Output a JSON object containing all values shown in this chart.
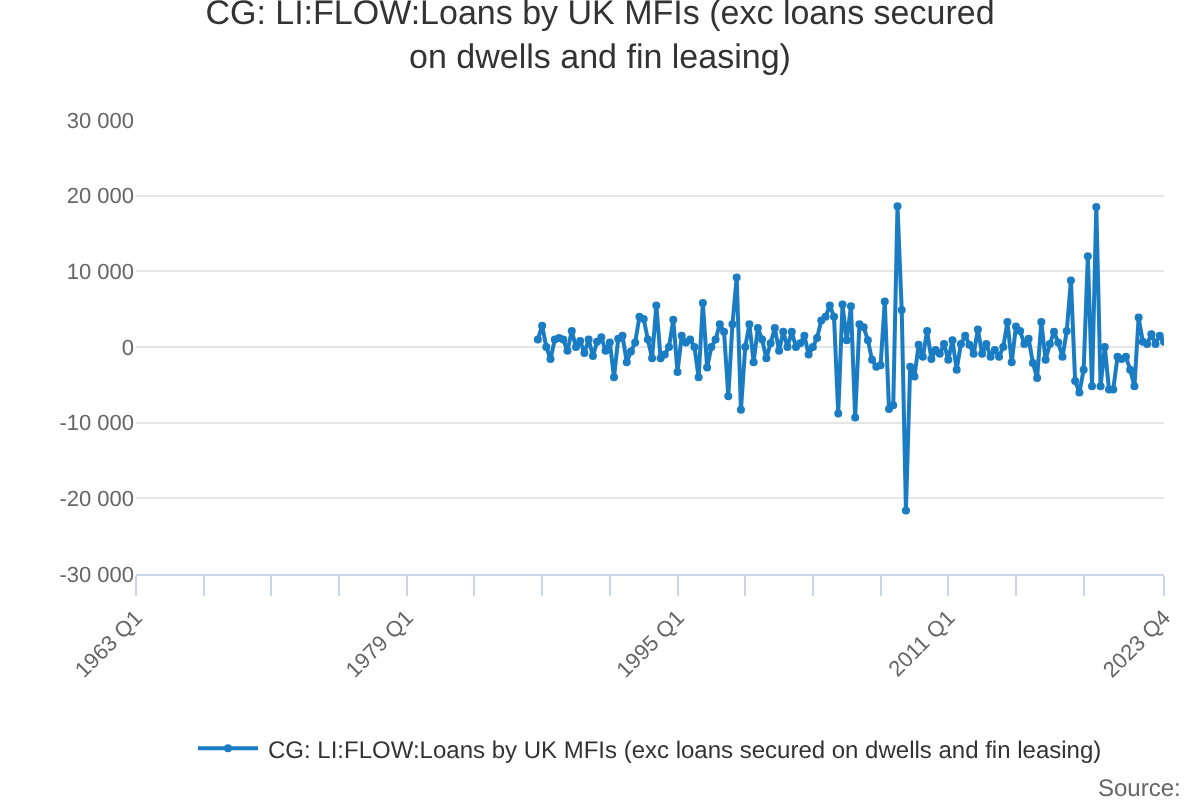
{
  "chart_data": {
    "type": "line",
    "title": "CG: LI:FLOW:Loans by UK MFIs (exc loans secured on dwells and fin leasing)",
    "x": [
      "1986-10",
      "1987-01",
      "1987-04",
      "1987-07",
      "1987-10",
      "1988-01",
      "1988-04",
      "1988-07",
      "1988-10",
      "1989-01",
      "1989-04",
      "1989-07",
      "1989-10",
      "1990-01",
      "1990-04",
      "1990-07",
      "1990-10",
      "1991-01",
      "1991-04",
      "1991-07",
      "1991-10",
      "1992-01",
      "1992-04",
      "1992-07",
      "1992-10",
      "1993-01",
      "1993-04",
      "1993-07",
      "1993-10",
      "1994-01",
      "1994-04",
      "1994-07",
      "1994-10",
      "1995-01",
      "1995-04",
      "1995-07",
      "1995-10",
      "1996-01",
      "1996-04",
      "1996-07",
      "1996-10",
      "1997-01",
      "1997-04",
      "1997-07",
      "1997-10",
      "1998-01",
      "1998-04",
      "1998-07",
      "1998-10",
      "1999-01",
      "1999-04",
      "1999-07",
      "1999-10",
      "2000-01",
      "2000-04",
      "2000-07",
      "2000-10",
      "2001-01",
      "2001-04",
      "2001-07",
      "2001-10",
      "2002-01",
      "2002-04",
      "2002-07",
      "2002-10",
      "2003-01",
      "2003-04",
      "2003-07",
      "2003-10",
      "2004-01",
      "2004-04",
      "2004-07",
      "2004-10",
      "2005-01",
      "2005-04",
      "2005-07",
      "2005-10",
      "2006-01",
      "2006-04",
      "2006-07",
      "2006-10",
      "2007-01",
      "2007-04",
      "2007-07",
      "2007-10",
      "2008-01",
      "2008-04",
      "2008-07",
      "2008-10",
      "2009-01",
      "2009-04",
      "2009-07",
      "2009-10",
      "2010-01",
      "2010-04",
      "2010-07",
      "2010-10",
      "2011-01",
      "2011-04",
      "2011-07",
      "2011-10",
      "2012-01",
      "2012-04",
      "2012-07",
      "2012-10",
      "2013-01",
      "2013-04",
      "2013-07",
      "2013-10",
      "2014-01",
      "2014-04",
      "2014-07",
      "2014-10",
      "2015-01",
      "2015-04",
      "2015-07",
      "2015-10",
      "2016-01",
      "2016-04",
      "2016-07",
      "2016-10",
      "2017-01",
      "2017-04",
      "2017-07",
      "2017-10",
      "2018-01",
      "2018-04",
      "2018-07",
      "2018-10",
      "2019-01",
      "2019-04",
      "2019-07",
      "2019-10",
      "2020-01",
      "2020-04",
      "2020-07",
      "2020-10",
      "2021-01",
      "2021-04",
      "2021-07",
      "2021-10",
      "2022-01",
      "2022-04",
      "2022-07",
      "2022-10",
      "2023-01",
      "2023-04",
      "2023-07",
      "2023-10"
    ],
    "series": [
      {
        "name": "CG: LI:FLOW:Loans by UK MFIs (exc loans secured on dwells and fin leasing)",
        "color": "#1a7cc3",
        "values": [
          1000,
          2800,
          0,
          -1600,
          1000,
          1200,
          1000,
          -500,
          2100,
          0,
          800,
          -800,
          1000,
          -1200,
          700,
          1300,
          -500,
          600,
          -4000,
          1100,
          1500,
          -2000,
          -600,
          600,
          4000,
          3700,
          1000,
          -1500,
          5500,
          -1500,
          -1000,
          0,
          3600,
          -3300,
          1500,
          600,
          1000,
          0,
          -4000,
          5800,
          -2700,
          0,
          1000,
          3000,
          2000,
          -6500,
          3000,
          9200,
          -8300,
          0,
          3000,
          -2000,
          2500,
          1000,
          -1500,
          500,
          2500,
          -500,
          2000,
          0,
          2000,
          0,
          500,
          1500,
          -1000,
          0,
          1200,
          3500,
          4000,
          5500,
          4000,
          -8800,
          5600,
          900,
          5400,
          -9300,
          3000,
          2600,
          900,
          -1700,
          -2600,
          -2400,
          6000,
          -8200,
          -7700,
          18600,
          4900,
          -21600,
          -2600,
          -3900,
          300,
          -1300,
          2100,
          -1600,
          -400,
          -900,
          400,
          -1700,
          900,
          -3000,
          400,
          1500,
          300,
          -900,
          2300,
          -900,
          400,
          -1300,
          -400,
          -1300,
          0,
          3300,
          -2000,
          2700,
          2100,
          400,
          1100,
          -2100,
          -4100,
          3300,
          -1700,
          400,
          2000,
          600,
          -1300,
          2100,
          8800,
          -4500,
          -6000,
          -3000,
          12000,
          -5200,
          18500,
          -5200,
          0,
          -5600,
          -5600,
          -1300,
          -1600,
          -1300,
          -3000,
          -5200,
          3900,
          700,
          400,
          1700,
          400,
          1500,
          700
        ]
      }
    ],
    "xlim": [
      "1963-01",
      "2023-10"
    ],
    "xticks": [
      {
        "value": "1963-01",
        "label": "1963 Q1"
      },
      {
        "value": "1967-01",
        "label": null
      },
      {
        "value": "1971-01",
        "label": null
      },
      {
        "value": "1975-01",
        "label": null
      },
      {
        "value": "1979-01",
        "label": "1979 Q1"
      },
      {
        "value": "1983-01",
        "label": null
      },
      {
        "value": "1987-01",
        "label": null
      },
      {
        "value": "1991-01",
        "label": null
      },
      {
        "value": "1995-01",
        "label": "1995 Q1"
      },
      {
        "value": "1999-01",
        "label": null
      },
      {
        "value": "2003-01",
        "label": null
      },
      {
        "value": "2007-01",
        "label": null
      },
      {
        "value": "2011-01",
        "label": "2011 Q1"
      },
      {
        "value": "2015-01",
        "label": null
      },
      {
        "value": "2019-01",
        "label": null
      },
      {
        "value": "2023-10",
        "label": "2023 Q4"
      }
    ],
    "ylim": [
      -30000,
      30000
    ],
    "yticks": [
      {
        "value": -30000,
        "label": "-30 000"
      },
      {
        "value": -20000,
        "label": "-20 000"
      },
      {
        "value": -10000,
        "label": "-10 000"
      },
      {
        "value": 0,
        "label": "0"
      },
      {
        "value": 10000,
        "label": "10 000"
      },
      {
        "value": 20000,
        "label": "20 000"
      },
      {
        "value": 30000,
        "label": "30 000"
      }
    ],
    "grid": "y",
    "legend": "bottom",
    "marker": "circle",
    "line_style": "solid",
    "annotations": [
      "Source:"
    ]
  }
}
